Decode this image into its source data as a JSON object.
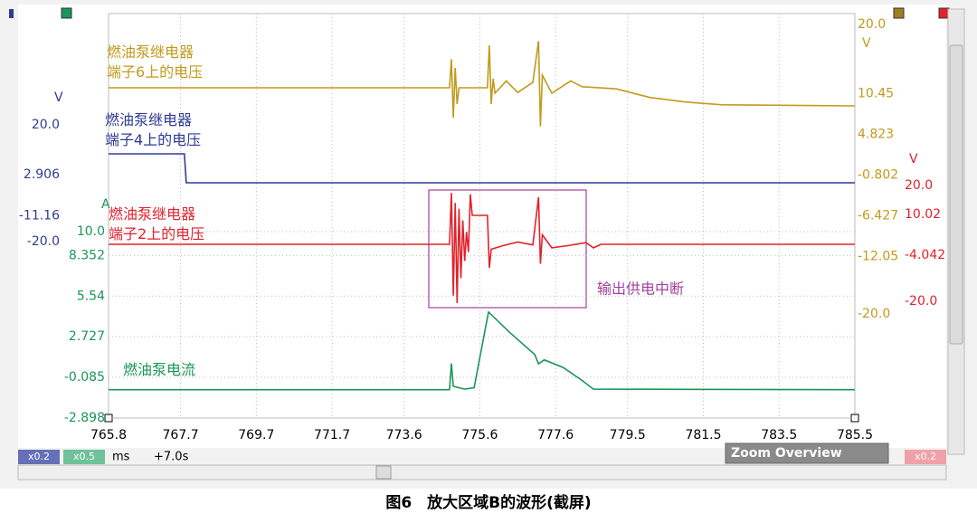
{
  "chart_data": {
    "type": "line",
    "xticks": [
      765.8,
      767.7,
      769.7,
      771.7,
      773.6,
      775.6,
      777.6,
      779.5,
      781.5,
      783.5,
      785.5
    ],
    "xlim": [
      765.8,
      785.5
    ],
    "ylim": [
      -2.9,
      25.1
    ],
    "yticks": [
      {
        "value": 10,
        "label": "10.0"
      },
      8.352,
      5.54,
      2.727,
      -0.085,
      -2.898
    ],
    "grid": true,
    "annotation": "输出供电中断",
    "series": [
      {
        "name": "燃油泵继电器\n端子6上的电压",
        "color": "#c29a1c",
        "unit": "V",
        "ylim": [
          -34.4,
          21.5
        ],
        "yticks": [
          {
            "value": 20,
            "label": "20.0"
          },
          10.45,
          4.823,
          -0.802,
          -6.427,
          -12.05,
          {
            "value": -20,
            "label": "-20.0"
          }
        ],
        "x": [
          765.8,
          774.8,
          774.85,
          774.9,
          774.95,
          775.0,
          775.05,
          775.8,
          775.85,
          775.9,
          775.95,
          776.0,
          776.3,
          776.6,
          777.0,
          777.15,
          777.2,
          777.25,
          777.5,
          778.0,
          778.3,
          779.2,
          780.1,
          781.0,
          782.0,
          785.5
        ],
        "values": [
          11.25,
          11.25,
          15.2,
          7.1,
          14,
          9,
          11.25,
          11.25,
          17.1,
          9,
          12.5,
          10.5,
          12.2,
          10.6,
          12.0,
          17.7,
          5.9,
          13,
          10.5,
          12.2,
          11.4,
          11.1,
          9.9,
          9.3,
          8.9,
          8.75
        ]
      },
      {
        "name": "燃油泵继电器\n端子4上的电压",
        "color": "#2e3c96",
        "unit": "V",
        "ylim": [
          -80.6,
          58.2
        ],
        "yticks": [
          {
            "value": 20,
            "label": "20.0"
          },
          2.906,
          -11.16,
          {
            "value": -20,
            "label": "-20.0"
          }
        ],
        "x": [
          765.8,
          767.8,
          767.85,
          785.5
        ],
        "values": [
          10.06,
          10.06,
          0.12,
          0.12
        ]
      },
      {
        "name": "燃油泵继电器\n端子2上的电压",
        "color": "#e0222c",
        "unit": "V",
        "ylim": [
          -60.3,
          79.4
        ],
        "yticks": [
          {
            "value": 20,
            "label": "20.0"
          },
          10.02,
          -4.042,
          {
            "value": -20,
            "label": "-20.0"
          }
        ],
        "x": [
          765.8,
          774.8,
          774.85,
          774.9,
          774.95,
          775.0,
          775.05,
          775.1,
          775.15,
          775.2,
          775.25,
          775.3,
          775.35,
          775.4,
          775.8,
          775.85,
          775.9,
          776.2,
          776.6,
          777.0,
          777.15,
          777.2,
          777.25,
          777.5,
          778.0,
          778.4,
          778.6,
          778.8,
          785.5
        ],
        "values": [
          -0.3,
          -0.3,
          17.5,
          -18,
          14,
          -20.6,
          12,
          -12,
          8,
          -6,
          4,
          -3,
          17,
          9.7,
          9.7,
          -8.4,
          -2,
          -0.8,
          0.5,
          -0.5,
          16,
          -7,
          3,
          -1.5,
          -0.6,
          0.3,
          -1.5,
          -0.3,
          -0.3
        ]
      },
      {
        "name": "燃油泵电流",
        "color": "#1b9558",
        "unit": "A",
        "x": [
          765.8,
          774.8,
          774.85,
          774.9,
          775.2,
          775.45,
          775.83,
          776.4,
          777.05,
          777.15,
          777.3,
          777.8,
          778.3,
          778.6,
          785.5
        ],
        "values": [
          -0.94,
          -0.94,
          0.88,
          -0.7,
          -0.9,
          -0.8,
          4.44,
          3.0,
          1.5,
          0.85,
          1.13,
          0.6,
          -0.3,
          -0.9,
          -0.94
        ]
      }
    ]
  },
  "toolbar": {
    "zoom_a": "x0.2",
    "zoom_b": "x0.5",
    "x_unit": "ms",
    "offset": "+7.0s",
    "panel": "Zoom Overview",
    "zoom_c": "x0.2"
  },
  "caption": "图6　放大区域B的波形(截屏)"
}
